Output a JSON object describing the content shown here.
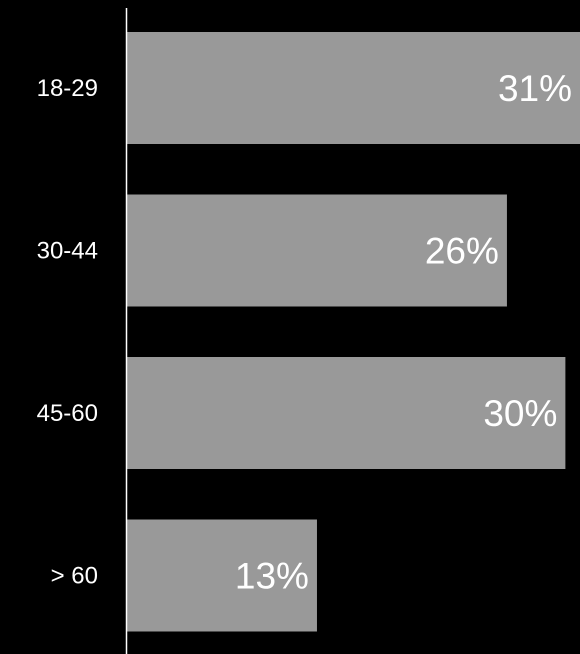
{
  "chart_data": {
    "type": "bar",
    "orientation": "horizontal",
    "categories": [
      "18-29",
      "30-44",
      "45-60",
      "> 60"
    ],
    "values": [
      31,
      26,
      30,
      13
    ],
    "data_labels": [
      "31%",
      "26%",
      "30%",
      "13%"
    ],
    "unit": "%",
    "xlim": [
      0,
      31
    ],
    "grid": false,
    "legend": "none",
    "bar_color": "#999999",
    "background_color": "#000000",
    "text_color": "#ffffff",
    "axis_color": "#ffffff"
  }
}
